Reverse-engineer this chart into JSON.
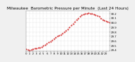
{
  "title": "Milwaukee  Barometric Pressure per Minute  (Last 24 Hours)",
  "bg_color": "#f0f0f0",
  "plot_bg": "#ffffff",
  "line_color": "#cc0000",
  "grid_color": "#c0c0c0",
  "ylim": [
    29.38,
    30.26
  ],
  "xlim": [
    0,
    1439
  ],
  "y_ticks": [
    29.4,
    29.5,
    29.6,
    29.7,
    29.8,
    29.9,
    30.0,
    30.1,
    30.2
  ],
  "y_tick_labels": [
    "29.4",
    "29.5",
    "29.6",
    "29.7",
    "29.8",
    "29.9",
    "30.0",
    "30.1",
    "30.2"
  ],
  "x_ticks": [
    0,
    60,
    120,
    180,
    240,
    300,
    360,
    420,
    480,
    540,
    600,
    660,
    720,
    780,
    840,
    900,
    960,
    1020,
    1080,
    1140,
    1200,
    1260,
    1320,
    1380
  ],
  "x_tick_labels": [
    "0",
    "1",
    "2",
    "3",
    "4",
    "5",
    "6",
    "7",
    "8",
    "9",
    "10",
    "11",
    "12",
    "13",
    "14",
    "15",
    "16",
    "17",
    "18",
    "19",
    "20",
    "21",
    "22",
    "23"
  ],
  "data_x": [
    0,
    30,
    60,
    90,
    120,
    150,
    180,
    210,
    240,
    270,
    300,
    330,
    360,
    390,
    420,
    450,
    480,
    510,
    540,
    570,
    600,
    630,
    660,
    690,
    720,
    750,
    780,
    810,
    840,
    870,
    900,
    930,
    960,
    990,
    1020,
    1050,
    1080,
    1110,
    1140,
    1170,
    1200,
    1230,
    1260,
    1290,
    1320,
    1350,
    1380,
    1410,
    1439
  ],
  "data_y": [
    29.42,
    29.41,
    29.4,
    29.41,
    29.43,
    29.44,
    29.44,
    29.45,
    29.46,
    29.47,
    29.5,
    29.52,
    29.54,
    29.57,
    29.59,
    29.62,
    29.65,
    29.67,
    29.7,
    29.72,
    29.74,
    29.77,
    29.8,
    29.83,
    29.86,
    29.9,
    29.94,
    29.98,
    30.02,
    30.06,
    30.1,
    30.13,
    30.16,
    30.18,
    30.19,
    30.2,
    30.21,
    30.2,
    30.19,
    30.18,
    30.17,
    30.15,
    30.13,
    30.1,
    30.07,
    30.05,
    30.03,
    30.02,
    30.0
  ],
  "title_fontsize": 4.2,
  "tick_fontsize": 2.8,
  "marker_size": 0.9,
  "linewidth": 0.5
}
